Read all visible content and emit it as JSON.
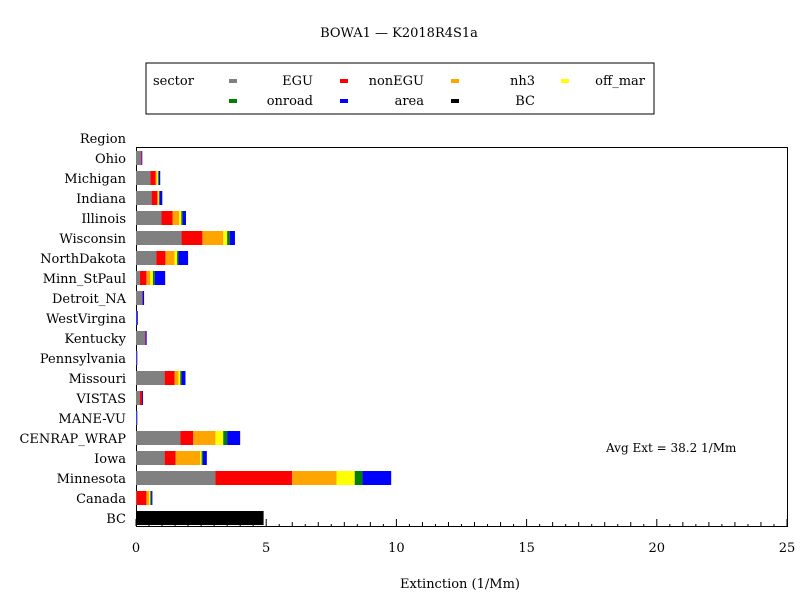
{
  "chart_data": {
    "type": "bar",
    "orientation": "horizontal",
    "stacked": true,
    "title": "BOWA1 — K2018R4S1a",
    "xlabel": "Extinction  (1/Mm)",
    "ylabel_header": "Region",
    "annotation": "Avg Ext =  38.2  1/Mm",
    "xlim": [
      0,
      25
    ],
    "xticks": [
      "0",
      "5",
      "10",
      "15",
      "20",
      "25"
    ],
    "grid": false,
    "legend": {
      "title": "sector",
      "placement": "top-center",
      "entries": [
        {
          "label": "EGU",
          "color": "#808080"
        },
        {
          "label": "nonEGU",
          "color": "#ff0000"
        },
        {
          "label": "nh3",
          "color": "#ffa500"
        },
        {
          "label": "off_mar",
          "color": "#ffff00"
        },
        {
          "label": "onroad",
          "color": "#008000"
        },
        {
          "label": "area",
          "color": "#0000ff"
        },
        {
          "label": "BC",
          "color": "#000000"
        }
      ]
    },
    "categories": [
      "Ohio",
      "Michigan",
      "Indiana",
      "Illinois",
      "Wisconsin",
      "NorthDakota",
      "Minn_StPaul",
      "Detroit_NA",
      "WestVirgina",
      "Kentucky",
      "Pennsylvania",
      "Missouri",
      "VISTAS",
      "MANE-VU",
      "CENRAP_WRAP",
      "Iowa",
      "Minnesota",
      "Canada",
      "BC"
    ],
    "series": [
      {
        "name": "EGU",
        "color": "#808080",
        "values": [
          0.18,
          0.55,
          0.6,
          0.98,
          1.75,
          0.78,
          0.15,
          0.25,
          0.02,
          0.35,
          0.02,
          1.1,
          0.15,
          0.02,
          1.7,
          1.1,
          3.05,
          0.02,
          0
        ]
      },
      {
        "name": "nonEGU",
        "color": "#ff0000",
        "values": [
          0.02,
          0.2,
          0.22,
          0.43,
          0.8,
          0.35,
          0.25,
          0.01,
          0.0,
          0.02,
          0.0,
          0.38,
          0.08,
          0.0,
          0.5,
          0.42,
          2.95,
          0.38,
          0
        ]
      },
      {
        "name": "nh3",
        "color": "#ffa500",
        "values": [
          0.01,
          0.05,
          0.04,
          0.25,
          0.8,
          0.35,
          0.15,
          0.0,
          0.0,
          0.0,
          0.0,
          0.15,
          0.0,
          0.0,
          0.85,
          0.95,
          1.7,
          0.1,
          0
        ]
      },
      {
        "name": "off_mar",
        "color": "#ffff00",
        "values": [
          0.0,
          0.05,
          0.03,
          0.08,
          0.15,
          0.1,
          0.1,
          0.0,
          0.0,
          0.0,
          0.0,
          0.07,
          0.0,
          0.0,
          0.3,
          0.05,
          0.7,
          0.05,
          0
        ]
      },
      {
        "name": "onroad",
        "color": "#008000",
        "values": [
          0.0,
          0.03,
          0.02,
          0.05,
          0.1,
          0.05,
          0.07,
          0.0,
          0.0,
          0.0,
          0.0,
          0.05,
          0.01,
          0.0,
          0.15,
          0.05,
          0.3,
          0.03,
          0
        ]
      },
      {
        "name": "area",
        "color": "#0000ff",
        "values": [
          0.02,
          0.05,
          0.1,
          0.13,
          0.2,
          0.37,
          0.4,
          0.05,
          0.05,
          0.04,
          0.03,
          0.15,
          0.03,
          0.03,
          0.5,
          0.15,
          1.1,
          0.05,
          0
        ]
      },
      {
        "name": "BC",
        "color": "#000000",
        "values": [
          0,
          0,
          0,
          0,
          0,
          0,
          0,
          0,
          0,
          0,
          0,
          0,
          0,
          0,
          0,
          0,
          0,
          0,
          4.9
        ]
      }
    ]
  }
}
